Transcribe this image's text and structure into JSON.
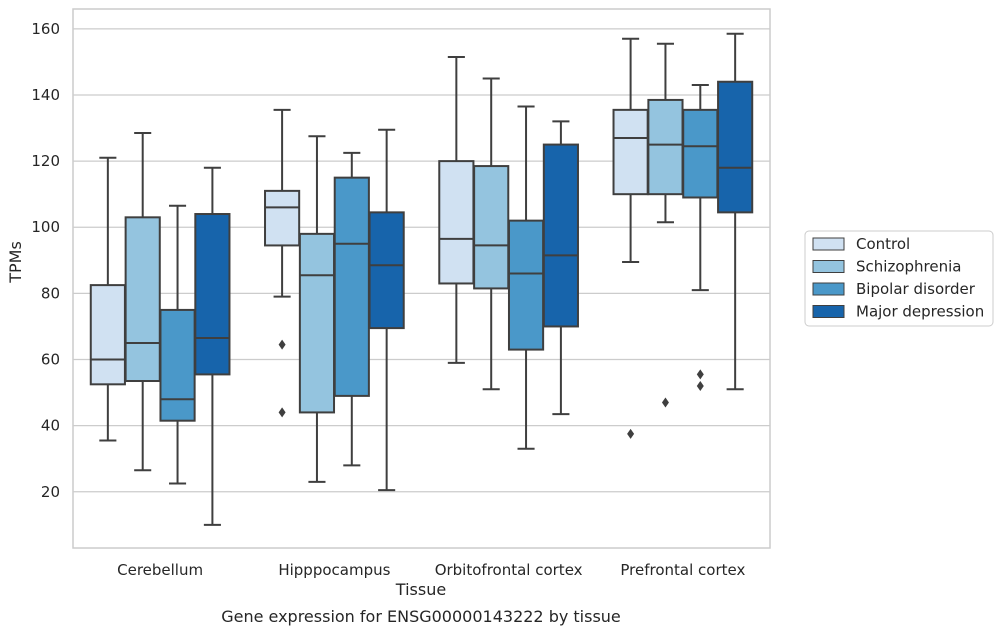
{
  "chart_data": {
    "type": "box",
    "title": "Gene expression for ENSG00000143222 by tissue",
    "xlabel": "Tissue",
    "ylabel": "TPMs",
    "ylim": [
      3,
      166
    ],
    "yticks": [
      20,
      40,
      60,
      80,
      100,
      120,
      140,
      160
    ],
    "grid": true,
    "legend_position": "right",
    "categories": [
      "Cerebellum",
      "Hipppocampus",
      "Orbitofrontal cortex",
      "Prefrontal cortex"
    ],
    "series": [
      {
        "name": "Control",
        "color": "#d0e1f2",
        "boxes": [
          {
            "whisker_low": 35.5,
            "q1": 52.5,
            "median": 60.0,
            "q3": 82.5,
            "whisker_high": 121.0,
            "outliers": []
          },
          {
            "whisker_low": 79.0,
            "q1": 94.5,
            "median": 106.0,
            "q3": 111.0,
            "whisker_high": 135.5,
            "outliers": [
              64.5,
              44.0
            ]
          },
          {
            "whisker_low": 59.0,
            "q1": 83.0,
            "median": 96.5,
            "q3": 120.0,
            "whisker_high": 151.5,
            "outliers": []
          },
          {
            "whisker_low": 89.5,
            "q1": 110.0,
            "median": 127.0,
            "q3": 135.5,
            "whisker_high": 157.0,
            "outliers": [
              37.5
            ]
          }
        ]
      },
      {
        "name": "Schizophrenia",
        "color": "#94c4df",
        "boxes": [
          {
            "whisker_low": 26.5,
            "q1": 53.5,
            "median": 65.0,
            "q3": 103.0,
            "whisker_high": 128.5,
            "outliers": []
          },
          {
            "whisker_low": 23.0,
            "q1": 44.0,
            "median": 85.5,
            "q3": 98.0,
            "whisker_high": 127.5,
            "outliers": []
          },
          {
            "whisker_low": 51.0,
            "q1": 81.5,
            "median": 94.5,
            "q3": 118.5,
            "whisker_high": 145.0,
            "outliers": []
          },
          {
            "whisker_low": 101.5,
            "q1": 110.0,
            "median": 125.0,
            "q3": 138.5,
            "whisker_high": 155.5,
            "outliers": [
              47.0
            ]
          }
        ]
      },
      {
        "name": "Bipolar disorder",
        "color": "#4a98c9",
        "boxes": [
          {
            "whisker_low": 22.5,
            "q1": 41.5,
            "median": 48.0,
            "q3": 75.0,
            "whisker_high": 106.5,
            "outliers": []
          },
          {
            "whisker_low": 28.0,
            "q1": 49.0,
            "median": 95.0,
            "q3": 115.0,
            "whisker_high": 122.5,
            "outliers": []
          },
          {
            "whisker_low": 33.0,
            "q1": 63.0,
            "median": 86.0,
            "q3": 102.0,
            "whisker_high": 136.5,
            "outliers": []
          },
          {
            "whisker_low": 81.0,
            "q1": 109.0,
            "median": 124.5,
            "q3": 135.5,
            "whisker_high": 143.0,
            "outliers": [
              55.5,
              52.0
            ]
          }
        ]
      },
      {
        "name": "Major depression",
        "color": "#1764ab",
        "boxes": [
          {
            "whisker_low": 10.0,
            "q1": 55.5,
            "median": 66.5,
            "q3": 104.0,
            "whisker_high": 118.0,
            "outliers": []
          },
          {
            "whisker_low": 20.5,
            "q1": 69.5,
            "median": 88.5,
            "q3": 104.5,
            "whisker_high": 129.5,
            "outliers": []
          },
          {
            "whisker_low": 43.5,
            "q1": 70.0,
            "median": 91.5,
            "q3": 125.0,
            "whisker_high": 132.0,
            "outliers": []
          },
          {
            "whisker_low": 51.0,
            "q1": 104.5,
            "median": 118.0,
            "q3": 144.0,
            "whisker_high": 158.5,
            "outliers": []
          }
        ]
      }
    ]
  }
}
